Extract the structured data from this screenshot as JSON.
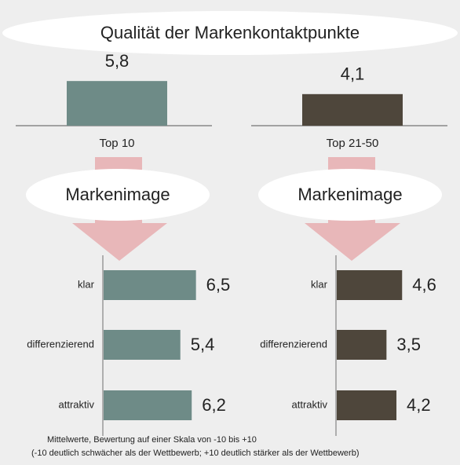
{
  "title": "Qualität der Markenkontaktpunkte",
  "chart_data": [
    {
      "type": "bar",
      "categories": [
        "Top 10",
        "Top 21-50"
      ],
      "values": [
        5.8,
        4.1
      ],
      "value_labels": [
        "5,8",
        "4,1"
      ],
      "colors": [
        "#6e8b87",
        "#4e463b"
      ]
    },
    {
      "type": "hbar",
      "title": "Markenimage",
      "categories": [
        "klar",
        "differenzierend",
        "attraktiv"
      ],
      "values": [
        6.5,
        5.4,
        6.2
      ],
      "value_labels": [
        "6,5",
        "5,4",
        "6,2"
      ],
      "color": "#6e8b87"
    },
    {
      "type": "hbar",
      "title": "Markenimage",
      "categories": [
        "klar",
        "differenzierend",
        "attraktiv"
      ],
      "values": [
        4.6,
        3.5,
        4.2
      ],
      "value_labels": [
        "4,6",
        "3,5",
        "4,2"
      ],
      "color": "#4e463b"
    }
  ],
  "footnote": [
    "Mittelwerte, Bewertung auf einer Skala von -10 bis +10",
    "(-10 deutlich schwächer als der Wettbewerb; +10 deutlich stärker als der Wettbewerb)"
  ]
}
